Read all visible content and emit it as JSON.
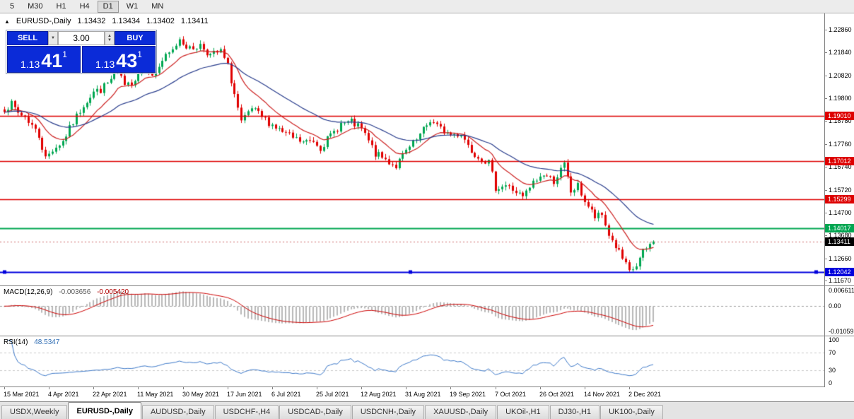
{
  "toolbar": {
    "timeframes": [
      "5",
      "M30",
      "H1",
      "H4",
      "D1",
      "W1",
      "MN"
    ],
    "active": "D1"
  },
  "chart_header": {
    "symbol": "EURUSD-,Daily",
    "open": "1.13432",
    "high": "1.13434",
    "low": "1.13402",
    "close": "1.13411"
  },
  "trade_panel": {
    "sell_label": "SELL",
    "buy_label": "BUY",
    "volume": "3.00",
    "sell_price": {
      "prefix": "1.13",
      "big": "41",
      "sup": "1"
    },
    "buy_price": {
      "prefix": "1.13",
      "big": "43",
      "sup": "1"
    }
  },
  "price_axis": {
    "labels": [
      "1.22860",
      "1.21840",
      "1.20820",
      "1.19800",
      "1.18780",
      "1.17760",
      "1.16740",
      "1.15720",
      "1.14700",
      "1.13680",
      "1.12660",
      "1.11670"
    ],
    "tags": [
      {
        "text": "1.19010",
        "price": 1.1901,
        "color": "#dd0000"
      },
      {
        "text": "1.17012",
        "price": 1.17012,
        "color": "#dd0000"
      },
      {
        "text": "1.15299",
        "price": 1.15299,
        "color": "#dd0000"
      },
      {
        "text": "1.14017",
        "price": 1.14017,
        "color": "#00a651"
      },
      {
        "text": "1.13411",
        "price": 1.13411,
        "color": "#000000"
      },
      {
        "text": "1.12042",
        "price": 1.12042,
        "color": "#0000dc"
      }
    ]
  },
  "macd_panel": {
    "label": "MACD(12,26,9)",
    "value_main": "-0.003656",
    "value_signal": "-0.005420",
    "axis": [
      "0.006611",
      "0.00",
      "-0.010595"
    ]
  },
  "rsi_panel": {
    "label": "RSI(14)",
    "value": "48.5347",
    "axis": [
      "100",
      "70",
      "30",
      "0"
    ],
    "levels": [
      70,
      30
    ]
  },
  "date_axis": {
    "labels": [
      "15 Mar 2021",
      "4 Apr 2021",
      "22 Apr 2021",
      "11 May 2021",
      "30 May 2021",
      "17 Jun 2021",
      "6 Jul 2021",
      "25 Jul 2021",
      "12 Aug 2021",
      "31 Aug 2021",
      "19 Sep 2021",
      "7 Oct 2021",
      "26 Oct 2021",
      "14 Nov 2021",
      "2 Dec 2021"
    ]
  },
  "tab_bar": {
    "items": [
      "USDX,Weekly",
      "EURUSD-,Daily",
      "AUDUSD-,Daily",
      "USDCHF-,H4",
      "USDCAD-,Daily",
      "USDCNH-,Daily",
      "XAUUSD-,Daily",
      "UKOil-,H1",
      "DJ30-,H1",
      "UK100-,Daily"
    ],
    "active_index": 1
  },
  "colors": {
    "up": "#00a651",
    "down": "#e00000",
    "ma_fast": "#cc2020",
    "ma_slow": "#283c8c",
    "macd_hist": "#b8b8b8",
    "macd_signal": "#cc0000",
    "rsi_line": "#3c78c8",
    "trade_blue": "#0b2bd8",
    "level_red": "#dd0000",
    "level_green": "#00a651",
    "level_blue": "#0000dc"
  },
  "chart_data": {
    "type": "candlestick",
    "symbol": "EURUSD",
    "timeframe": "Daily",
    "x_range": [
      "15 Mar 2021",
      "2 Dec 2021"
    ],
    "num_candles": 190,
    "y_axis_range": [
      1.1145,
      1.2362
    ],
    "close_waypoints": [
      [
        0,
        1.1935
      ],
      [
        2,
        1.1952
      ],
      [
        4,
        1.1915
      ],
      [
        6,
        1.1898
      ],
      [
        8,
        1.186
      ],
      [
        10,
        1.1812
      ],
      [
        12,
        1.1712
      ],
      [
        14,
        1.1752
      ],
      [
        17,
        1.1788
      ],
      [
        20,
        1.1872
      ],
      [
        23,
        1.1952
      ],
      [
        26,
        1.2008
      ],
      [
        28,
        1.2018
      ],
      [
        31,
        1.2062
      ],
      [
        33,
        1.2128
      ],
      [
        35,
        1.2025
      ],
      [
        38,
        1.2068
      ],
      [
        41,
        1.2148
      ],
      [
        43,
        1.2072
      ],
      [
        46,
        1.2148
      ],
      [
        49,
        1.2192
      ],
      [
        51,
        1.2248
      ],
      [
        54,
        1.2198
      ],
      [
        57,
        1.2218
      ],
      [
        60,
        1.2172
      ],
      [
        63,
        1.2188
      ],
      [
        65,
        1.2122
      ],
      [
        67,
        1.1998
      ],
      [
        69,
        1.1868
      ],
      [
        72,
        1.1932
      ],
      [
        75,
        1.1895
      ],
      [
        78,
        1.1862
      ],
      [
        81,
        1.1828
      ],
      [
        84,
        1.1802
      ],
      [
        87,
        1.1782
      ],
      [
        90,
        1.1792
      ],
      [
        92,
        1.1762
      ],
      [
        95,
        1.1812
      ],
      [
        98,
        1.1866
      ],
      [
        101,
        1.1872
      ],
      [
        104,
        1.1842
      ],
      [
        106,
        1.1788
      ],
      [
        108,
        1.1732
      ],
      [
        111,
        1.1706
      ],
      [
        114,
        1.1678
      ],
      [
        117,
        1.1742
      ],
      [
        120,
        1.1792
      ],
      [
        124,
        1.1882
      ],
      [
        127,
        1.1842
      ],
      [
        130,
        1.1818
      ],
      [
        133,
        1.1822
      ],
      [
        136,
        1.1748
      ],
      [
        138,
        1.1722
      ],
      [
        141,
        1.1692
      ],
      [
        143,
        1.1582
      ],
      [
        146,
        1.1592
      ],
      [
        149,
        1.1562
      ],
      [
        151,
        1.1536
      ],
      [
        154,
        1.1602
      ],
      [
        157,
        1.1642
      ],
      [
        160,
        1.1612
      ],
      [
        163,
        1.1682
      ],
      [
        165,
        1.1562
      ],
      [
        167,
        1.1588
      ],
      [
        169,
        1.1522
      ],
      [
        172,
        1.1448
      ],
      [
        174,
        1.1458
      ],
      [
        176,
        1.1372
      ],
      [
        179,
        1.1292
      ],
      [
        182,
        1.1202
      ],
      [
        184,
        1.1232
      ],
      [
        186,
        1.1292
      ],
      [
        189,
        1.13411
      ]
    ],
    "candle_noise": 0.0017,
    "wick_noise": 0.0015,
    "levels": [
      {
        "price": 1.1901,
        "color": "#dd0000",
        "width": 1.4,
        "style": "solid"
      },
      {
        "price": 1.17012,
        "color": "#dd0000",
        "width": 1.4,
        "style": "solid"
      },
      {
        "price": 1.15299,
        "color": "#dd0000",
        "width": 1.4,
        "style": "solid"
      },
      {
        "price": 1.14017,
        "color": "#00a651",
        "width": 2,
        "style": "solid"
      },
      {
        "price": 1.12042,
        "color": "#0000dc",
        "width": 2,
        "style": "solid",
        "handles": true
      }
    ],
    "bid_line": {
      "price": 1.13411,
      "color": "#cc6666",
      "style": "dash"
    },
    "moving_averages": [
      {
        "type": "ema",
        "period": 12,
        "color": "#cc2020"
      },
      {
        "type": "ema",
        "period": 34,
        "color": "#283c8c"
      }
    ],
    "indicators": {
      "macd": {
        "fast": 12,
        "slow": 26,
        "signal": 9,
        "last_main": -0.003656,
        "last_signal": -0.00542,
        "axis_max": 0.006611,
        "axis_min": -0.010595
      },
      "rsi": {
        "period": 14,
        "last": 48.5347,
        "levels": [
          70,
          30
        ]
      }
    },
    "current_bid": 1.13411,
    "current_ask": 1.13431
  }
}
